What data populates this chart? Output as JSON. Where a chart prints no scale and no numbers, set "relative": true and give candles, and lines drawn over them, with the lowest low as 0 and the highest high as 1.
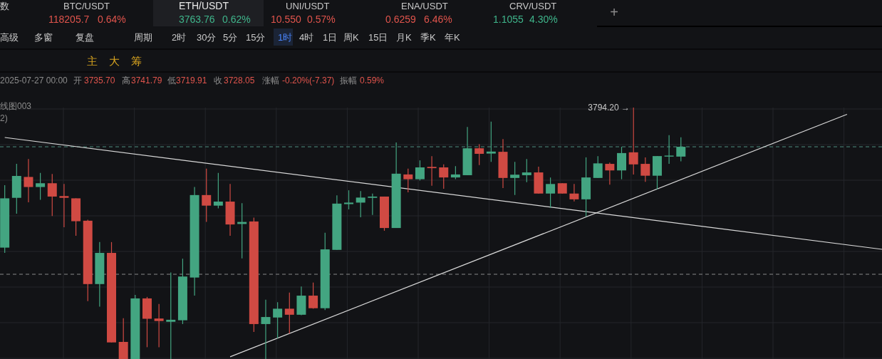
{
  "chart_data": {
    "type": "candlestick",
    "relative": true,
    "grid": true,
    "categories": [
      null,
      null,
      null,
      null,
      null,
      null,
      null,
      null,
      null,
      null,
      null,
      null,
      null,
      null,
      null,
      null,
      null,
      null,
      null,
      null,
      null,
      null,
      null,
      null,
      null,
      null,
      null,
      null,
      null,
      null,
      null,
      null,
      null,
      null,
      null,
      null,
      null,
      null,
      null,
      null,
      null,
      null,
      null,
      null,
      null,
      null,
      null,
      null,
      null,
      null,
      null,
      null,
      null,
      null,
      null,
      null,
      null,
      null,
      null,
      null,
      null,
      null,
      null,
      null,
      null,
      null,
      null,
      null,
      null,
      null,
      null,
      null,
      null,
      null,
      null
    ],
    "ohlc": [
      [
        0.443,
        0.691,
        0.422,
        0.639
      ],
      [
        0.641,
        0.776,
        0.578,
        0.728
      ],
      [
        0.724,
        0.795,
        0.623,
        0.684
      ],
      [
        0.684,
        0.74,
        0.633,
        0.699
      ],
      [
        0.699,
        0.736,
        0.569,
        0.646
      ],
      [
        0.648,
        0.696,
        0.524,
        0.641
      ],
      [
        0.639,
        0.639,
        0.49,
        0.548
      ],
      [
        0.55,
        0.554,
        0.23,
        0.298
      ],
      [
        0.298,
        0.465,
        0.208,
        0.422
      ],
      [
        0.422,
        0.465,
        0.066,
        0.066
      ],
      [
        0.068,
        0.162,
        0,
        0
      ],
      [
        0,
        0.255,
        0,
        0.241
      ],
      [
        0.241,
        0.247,
        0.047,
        0.16
      ],
      [
        0.161,
        0.219,
        0.047,
        0.151
      ],
      [
        0.148,
        0.344,
        0,
        0.156
      ],
      [
        0.154,
        0.399,
        0.139,
        0.328
      ],
      [
        0.324,
        0.684,
        0.252,
        0.652
      ],
      [
        0.652,
        0.757,
        0.545,
        0.61
      ],
      [
        0.61,
        0.74,
        0.599,
        0.626
      ],
      [
        0.626,
        0.696,
        0.49,
        0.535
      ],
      [
        0.537,
        0.62,
        0.4,
        0.545
      ],
      [
        0.547,
        0.562,
        0.108,
        0.139
      ],
      [
        0.139,
        0.236,
        0,
        0.167
      ],
      [
        0.165,
        0.226,
        0.082,
        0.2
      ],
      [
        0.2,
        0.264,
        0.101,
        0.176
      ],
      [
        0.176,
        0.288,
        0.174,
        0.252
      ],
      [
        0.252,
        0.304,
        0.2,
        0.202
      ],
      [
        0.202,
        0.502,
        0.195,
        0.436
      ],
      [
        0.434,
        0.651,
        0.434,
        0.618
      ],
      [
        0.616,
        0.671,
        0.595,
        0.622
      ],
      [
        0.622,
        0.668,
        0.564,
        0.642
      ],
      [
        0.641,
        0.658,
        0.573,
        0.646
      ],
      [
        0.646,
        0.646,
        0.51,
        0.521
      ],
      [
        0.521,
        0.861,
        0.521,
        0.737
      ],
      [
        0.734,
        0.757,
        0.663,
        0.715
      ],
      [
        0.715,
        0.79,
        0.71,
        0.762
      ],
      [
        0.764,
        0.807,
        0.689,
        0.759
      ],
      [
        0.762,
        0.774,
        0.677,
        0.722
      ],
      [
        0.722,
        0.767,
        0.715,
        0.734
      ],
      [
        0.731,
        0.923,
        0.731,
        0.838
      ],
      [
        0.838,
        0.854,
        0.771,
        0.816
      ],
      [
        0.817,
        0.944,
        0.784,
        0.825
      ],
      [
        0.824,
        0.875,
        0.68,
        0.72
      ],
      [
        0.72,
        0.784,
        0.652,
        0.733
      ],
      [
        0.731,
        0.795,
        0.703,
        0.742
      ],
      [
        0.742,
        0.765,
        0.658,
        0.658
      ],
      [
        0.658,
        0.722,
        0.601,
        0.696
      ],
      [
        0.699,
        0.699,
        0.658,
        0.658
      ],
      [
        0.658,
        0.696,
        0.627,
        0.635
      ],
      [
        0.635,
        0.802,
        0.567,
        0.722
      ],
      [
        0.72,
        0.807,
        0.72,
        0.778
      ],
      [
        0.776,
        0.781,
        0.693,
        0.75
      ],
      [
        0.75,
        0.844,
        0.715,
        0.819
      ],
      [
        0.822,
        1,
        0.734,
        0.774
      ],
      [
        0.776,
        0.802,
        0.705,
        0.729
      ],
      [
        0.729,
        0.807,
        0.674,
        0.807
      ],
      [
        0.805,
        0.89,
        0.776,
        0.809
      ],
      [
        0.805,
        0.882,
        0.786,
        0.844
      ],
      null,
      null,
      null,
      null,
      null,
      null,
      null,
      null,
      null,
      null,
      null,
      null,
      null,
      null,
      null,
      null,
      null
    ],
    "series": [
      {
        "type": "line",
        "color": "#d9d9d9",
        "values": [
          0.881,
          null,
          null,
          null,
          null,
          null,
          null,
          null,
          null,
          null,
          null,
          null,
          null,
          null,
          null,
          null,
          null,
          null,
          null,
          null,
          null,
          null,
          null,
          null,
          null,
          null,
          null,
          null,
          null,
          null,
          null,
          null,
          null,
          null,
          null,
          null,
          null,
          null,
          null,
          null,
          null,
          null,
          null,
          null,
          null,
          null,
          null,
          null,
          null,
          null,
          null,
          null,
          null,
          null,
          null,
          null,
          null,
          null,
          null,
          null,
          null,
          null,
          null,
          null,
          null,
          null,
          null,
          null,
          null,
          null,
          null,
          null,
          null,
          null,
          0.436
        ]
      },
      {
        "type": "line",
        "color": "#d9d9d9",
        "values": [
          null,
          null,
          null,
          null,
          null,
          null,
          null,
          null,
          null,
          null,
          null,
          null,
          null,
          null,
          null,
          null,
          null,
          null,
          null,
          0.009,
          null,
          null,
          null,
          null,
          null,
          null,
          null,
          null,
          null,
          null,
          null,
          null,
          null,
          null,
          null,
          null,
          null,
          null,
          null,
          null,
          null,
          null,
          null,
          null,
          null,
          null,
          null,
          null,
          null,
          null,
          null,
          null,
          null,
          null,
          null,
          null,
          null,
          null,
          null,
          null,
          null,
          null,
          null,
          null,
          null,
          null,
          null,
          null,
          null,
          null,
          null,
          0.973,
          null,
          null,
          null
        ]
      }
    ],
    "ref_lines": [
      {
        "axis": "y",
        "value": 0.844,
        "color": "#4f8f80",
        "line_style": "dashed"
      },
      {
        "axis": "y",
        "value": 0.337,
        "color": "#8a8a8a",
        "line_style": "dashed"
      }
    ],
    "annotations": [
      "数",
      "BTC/USDT",
      "118205.7",
      "0.64%",
      "ETH/USDT",
      "3763.76",
      "0.62%",
      "UNI/USDT",
      "10.550",
      "0.57%",
      "ENA/USDT",
      "0.6259",
      "6.46%",
      "CRV/USDT",
      "1.1055",
      "4.30%",
      "+",
      "高级",
      "多窗",
      "复盘",
      "周期",
      "2时",
      "30分",
      "5分",
      "15分",
      "1时",
      "4时",
      "1日",
      "周K",
      "15日",
      "月K",
      "季K",
      "年K",
      "主",
      "大",
      "筹",
      "2025-07-27 00:00",
      "开",
      "3735.70",
      "高",
      "3741.79",
      "低",
      "3719.91",
      "收",
      "3728.05",
      "涨幅",
      "-0.20%(-7.37)",
      "振幅",
      "0.59%",
      "线图003",
      "2)",
      "3794.20 →"
    ]
  }
}
